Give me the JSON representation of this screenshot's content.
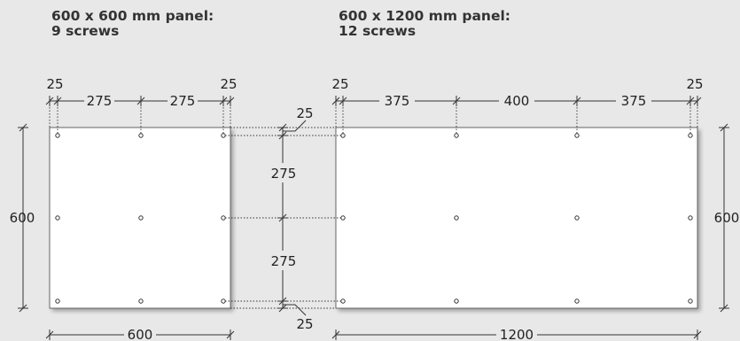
{
  "panel_a": {
    "title_line1": "600 x 600 mm panel:",
    "title_line2": "9 screws",
    "top_dims": [
      "25",
      "275",
      "275",
      "25"
    ],
    "height_label": "600",
    "width_label": "600"
  },
  "panel_b": {
    "title_line1": "600 x 1200 mm panel:",
    "title_line2": "12 screws",
    "top_dims": [
      "25",
      "375",
      "400",
      "375",
      "25"
    ],
    "height_label": "600",
    "width_label": "1200"
  },
  "middle_dims": {
    "top_margin": "25",
    "upper_gap": "275",
    "lower_gap": "275",
    "bottom_margin": "25"
  },
  "colors": {
    "background": "#e8e8e8",
    "panel": "#ffffff",
    "line": "#333333"
  }
}
